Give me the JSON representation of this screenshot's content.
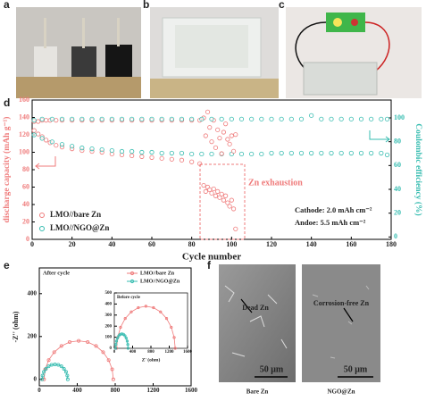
{
  "panels": {
    "labels": [
      "a",
      "b",
      "c",
      "d",
      "e",
      "f"
    ],
    "f": {
      "left": {
        "note": "Dead Zn",
        "scale": "50 μm",
        "caption": "Bare Zn"
      },
      "right": {
        "note": "Corrosion-free Zn",
        "scale": "50 μm",
        "caption": "NGO@Zn"
      }
    }
  },
  "chart_data": [
    {
      "type": "scatter",
      "xlabel": "Cycle number",
      "ylabel": "discharge capacity (mAh g⁻¹)",
      "y2label": "Coulombic efficiency (%)",
      "xlim": [
        0,
        180
      ],
      "xticks": [
        0,
        20,
        40,
        60,
        80,
        100,
        120,
        140,
        160,
        180
      ],
      "ylim": [
        0,
        160
      ],
      "yticks": [
        0,
        20,
        40,
        60,
        80,
        100,
        120,
        140,
        160
      ],
      "y2lim": [
        -2,
        115
      ],
      "y2ticks": [
        0,
        20,
        40,
        60,
        80,
        100
      ],
      "annotations": [
        "Zn exhaustion",
        "Cathode: 2.0 mAh cm⁻²",
        "Andoe: 5.5 mAh cm⁻²"
      ],
      "series": [
        {
          "name": "LMO//bare Zn",
          "color": "#ef7b7b",
          "x": [
            1,
            3,
            5,
            7,
            9,
            12,
            15,
            20,
            25,
            30,
            35,
            40,
            45,
            50,
            55,
            60,
            65,
            70,
            75,
            80,
            84,
            86,
            87,
            88,
            89,
            90,
            91,
            92,
            93,
            94,
            95,
            96,
            97,
            98,
            99,
            100,
            101,
            102
          ],
          "values": [
            125,
            121,
            118,
            114,
            111,
            108,
            106,
            104,
            102,
            101,
            100,
            98,
            97,
            96,
            95,
            94,
            93,
            92,
            91,
            89,
            87,
            62,
            55,
            60,
            57,
            53,
            58,
            50,
            55,
            48,
            52,
            45,
            50,
            42,
            38,
            45,
            35,
            12
          ]
        },
        {
          "name": "LMO//NGO@Zn",
          "color": "#36bcb0",
          "x": [
            1,
            5,
            10,
            15,
            20,
            25,
            30,
            35,
            40,
            45,
            50,
            55,
            60,
            65,
            70,
            75,
            80,
            85,
            90,
            95,
            100,
            105,
            110,
            115,
            120,
            125,
            130,
            135,
            140,
            145,
            150,
            155,
            160,
            165,
            170,
            175,
            178
          ],
          "values": [
            120,
            116,
            112,
            109,
            107,
            105,
            104,
            103,
            102,
            101,
            101,
            100,
            100,
            99,
            99,
            99,
            98,
            98,
            98,
            98,
            98,
            98,
            98,
            98,
            99,
            99,
            99,
            99,
            99,
            99,
            99,
            99,
            99,
            99,
            99,
            99,
            97
          ]
        },
        {
          "color": "#ef7b7b",
          "axis": "y2",
          "x": [
            1,
            3,
            5,
            7,
            9,
            12,
            15,
            20,
            25,
            30,
            35,
            40,
            45,
            50,
            55,
            60,
            65,
            70,
            75,
            80,
            84,
            86,
            87,
            88,
            89,
            90,
            91,
            92,
            93,
            94,
            95,
            96,
            97,
            98,
            99,
            100,
            101,
            102
          ],
          "values": [
            97,
            97,
            98,
            98,
            98,
            98,
            98,
            98,
            98,
            98,
            98,
            98,
            98,
            98,
            98,
            98,
            98,
            98,
            98,
            98,
            98,
            100,
            85,
            105,
            92,
            80,
            98,
            75,
            90,
            83,
            70,
            88,
            95,
            82,
            78,
            85,
            72,
            86
          ]
        },
        {
          "color": "#36bcb0",
          "axis": "y2",
          "x": [
            1,
            5,
            10,
            15,
            20,
            25,
            30,
            35,
            40,
            45,
            50,
            55,
            60,
            65,
            70,
            75,
            80,
            85,
            90,
            95,
            100,
            105,
            110,
            115,
            120,
            125,
            130,
            135,
            140,
            145,
            150,
            155,
            160,
            165,
            170,
            175,
            178
          ],
          "values": [
            98,
            99,
            99,
            99,
            99,
            99,
            99,
            99,
            99,
            99,
            99,
            99,
            99,
            99,
            99,
            99,
            99,
            99,
            99,
            99,
            99,
            99,
            99,
            99,
            99,
            99,
            99,
            99,
            102,
            99,
            99,
            99,
            99,
            99,
            99,
            99,
            99
          ]
        }
      ]
    },
    {
      "type": "line",
      "title": "After cycle",
      "ylabel": "-Z'' (ohm)",
      "xlim": [
        0,
        1600
      ],
      "xticks": [
        0,
        400,
        800,
        1200,
        1600
      ],
      "ylim": [
        -30,
        520
      ],
      "yticks": [
        0,
        200,
        400
      ],
      "series": [
        {
          "name": "LMO//bare Zn",
          "color": "#ef7b7b",
          "x": [
            50,
            62,
            99,
            157,
            233,
            320,
            415,
            510,
            598,
            673,
            731,
            768,
            780
          ],
          "values": [
            0,
            47,
            90,
            127,
            156,
            174,
            180,
            174,
            156,
            127,
            90,
            47,
            0
          ]
        },
        {
          "name": "LMO//NGO@Zn",
          "color": "#36bcb0",
          "x": [
            30,
            35,
            48,
            70,
            98,
            130,
            165,
            200,
            233,
            260,
            282,
            295,
            300
          ],
          "values": [
            0,
            18,
            35,
            49,
            61,
            68,
            70,
            68,
            61,
            49,
            35,
            18,
            0
          ]
        }
      ]
    },
    {
      "type": "line",
      "title": "Before cycle",
      "xlabel": "Z' (ohm)",
      "xlim": [
        0,
        1600
      ],
      "xticks": [
        0,
        400,
        800,
        1200,
        1600
      ],
      "ylim": [
        0,
        500
      ],
      "yticks": [
        0,
        100,
        200,
        300,
        400,
        500
      ],
      "series": [
        {
          "color": "#ef7b7b",
          "x": [
            50,
            72,
            136,
            238,
            370,
            524,
            690,
            856,
            1010,
            1142,
            1244,
            1308,
            1330
          ],
          "values": [
            0,
            98,
            190,
            269,
            329,
            367,
            380,
            367,
            329,
            269,
            190,
            98,
            0
          ]
        },
        {
          "color": "#36bcb0",
          "x": [
            30,
            35,
            48,
            70,
            98,
            130,
            165,
            200,
            233,
            260,
            282,
            295,
            300
          ],
          "values": [
            0,
            34,
            65,
            92,
            113,
            126,
            130,
            126,
            113,
            92,
            65,
            34,
            0
          ]
        }
      ]
    }
  ]
}
